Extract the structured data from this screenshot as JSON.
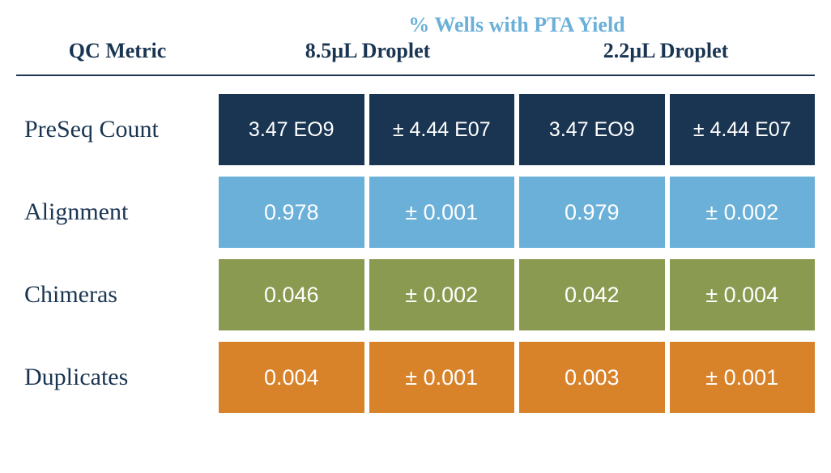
{
  "header": {
    "qc_metric": "QC Metric",
    "super": "% Wells with PTA Yield",
    "col1": "8.5µL Droplet",
    "col2": "2.2µL Droplet"
  },
  "colors": {
    "text_dark": "#1a3552",
    "light_blue": "#6bb0d8",
    "preseq_bg": "#1a3552",
    "alignment_bg": "#6bb0d8",
    "chimeras_bg": "#8a9a50",
    "duplicates_bg": "#d8822a",
    "cell_text": "#ffffff",
    "background": "#ffffff"
  },
  "rows": {
    "preseq": {
      "label": "PreSeq Count",
      "c1": "3.47 EO9",
      "c2": "± 4.44 E07",
      "c3": "3.47 EO9",
      "c4": "± 4.44 E07"
    },
    "alignment": {
      "label": "Alignment",
      "c1": "0.978",
      "c2": "± 0.001",
      "c3": "0.979",
      "c4": "± 0.002"
    },
    "chimeras": {
      "label": "Chimeras",
      "c1": "0.046",
      "c2": "± 0.002",
      "c3": "0.042",
      "c4": "± 0.004"
    },
    "duplicates": {
      "label": "Duplicates",
      "c1": "0.004",
      "c2": "± 0.001",
      "c3": "0.003",
      "c4": "± 0.001"
    }
  }
}
